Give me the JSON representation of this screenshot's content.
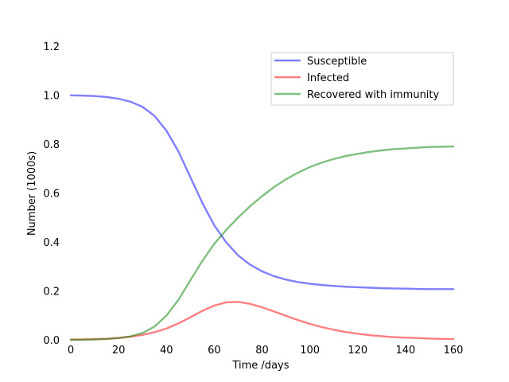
{
  "chart_data": {
    "type": "line",
    "title": "",
    "xlabel": "Time /days",
    "ylabel": "Number (1000s)",
    "xlim": [
      -3,
      162
    ],
    "ylim": [
      0,
      1.2
    ],
    "xticks": [
      0,
      20,
      40,
      60,
      80,
      100,
      120,
      140,
      160
    ],
    "yticks": [
      0.0,
      0.2,
      0.4,
      0.6,
      0.8,
      1.0,
      1.2
    ],
    "x_tick_labels": [
      "0",
      "20",
      "40",
      "60",
      "80",
      "100",
      "120",
      "140",
      "160"
    ],
    "y_tick_labels": [
      "0.0",
      "0.2",
      "0.4",
      "0.6",
      "0.8",
      "1.0",
      "1.2"
    ],
    "grid": false,
    "legend_position": "top-right",
    "x": [
      0,
      5,
      10,
      15,
      20,
      25,
      30,
      35,
      40,
      45,
      50,
      55,
      60,
      65,
      70,
      75,
      80,
      85,
      90,
      95,
      100,
      105,
      110,
      115,
      120,
      125,
      130,
      135,
      140,
      145,
      150,
      155,
      160
    ],
    "series": [
      {
        "name": "Susceptible",
        "color": "#0000ff",
        "values": [
          0.999,
          0.998,
          0.996,
          0.992,
          0.985,
          0.973,
          0.952,
          0.915,
          0.855,
          0.77,
          0.665,
          0.56,
          0.468,
          0.398,
          0.345,
          0.307,
          0.28,
          0.26,
          0.246,
          0.236,
          0.229,
          0.224,
          0.22,
          0.217,
          0.215,
          0.213,
          0.211,
          0.21,
          0.209,
          0.208,
          0.207,
          0.207,
          0.207
        ]
      },
      {
        "name": "Infected",
        "color": "#ff0000",
        "values": [
          0.001,
          0.0015,
          0.0025,
          0.004,
          0.008,
          0.013,
          0.02,
          0.031,
          0.046,
          0.067,
          0.092,
          0.118,
          0.14,
          0.153,
          0.155,
          0.147,
          0.133,
          0.116,
          0.098,
          0.081,
          0.065,
          0.052,
          0.041,
          0.032,
          0.025,
          0.019,
          0.015,
          0.011,
          0.009,
          0.007,
          0.005,
          0.004,
          0.003
        ]
      },
      {
        "name": "Recovered with immunity",
        "color": "#008000",
        "values": [
          0.0,
          0.0005,
          0.0015,
          0.004,
          0.007,
          0.014,
          0.028,
          0.054,
          0.099,
          0.163,
          0.243,
          0.322,
          0.392,
          0.449,
          0.5,
          0.546,
          0.587,
          0.624,
          0.656,
          0.683,
          0.706,
          0.724,
          0.739,
          0.751,
          0.76,
          0.768,
          0.774,
          0.779,
          0.782,
          0.785,
          0.788,
          0.789,
          0.79
        ]
      }
    ]
  }
}
